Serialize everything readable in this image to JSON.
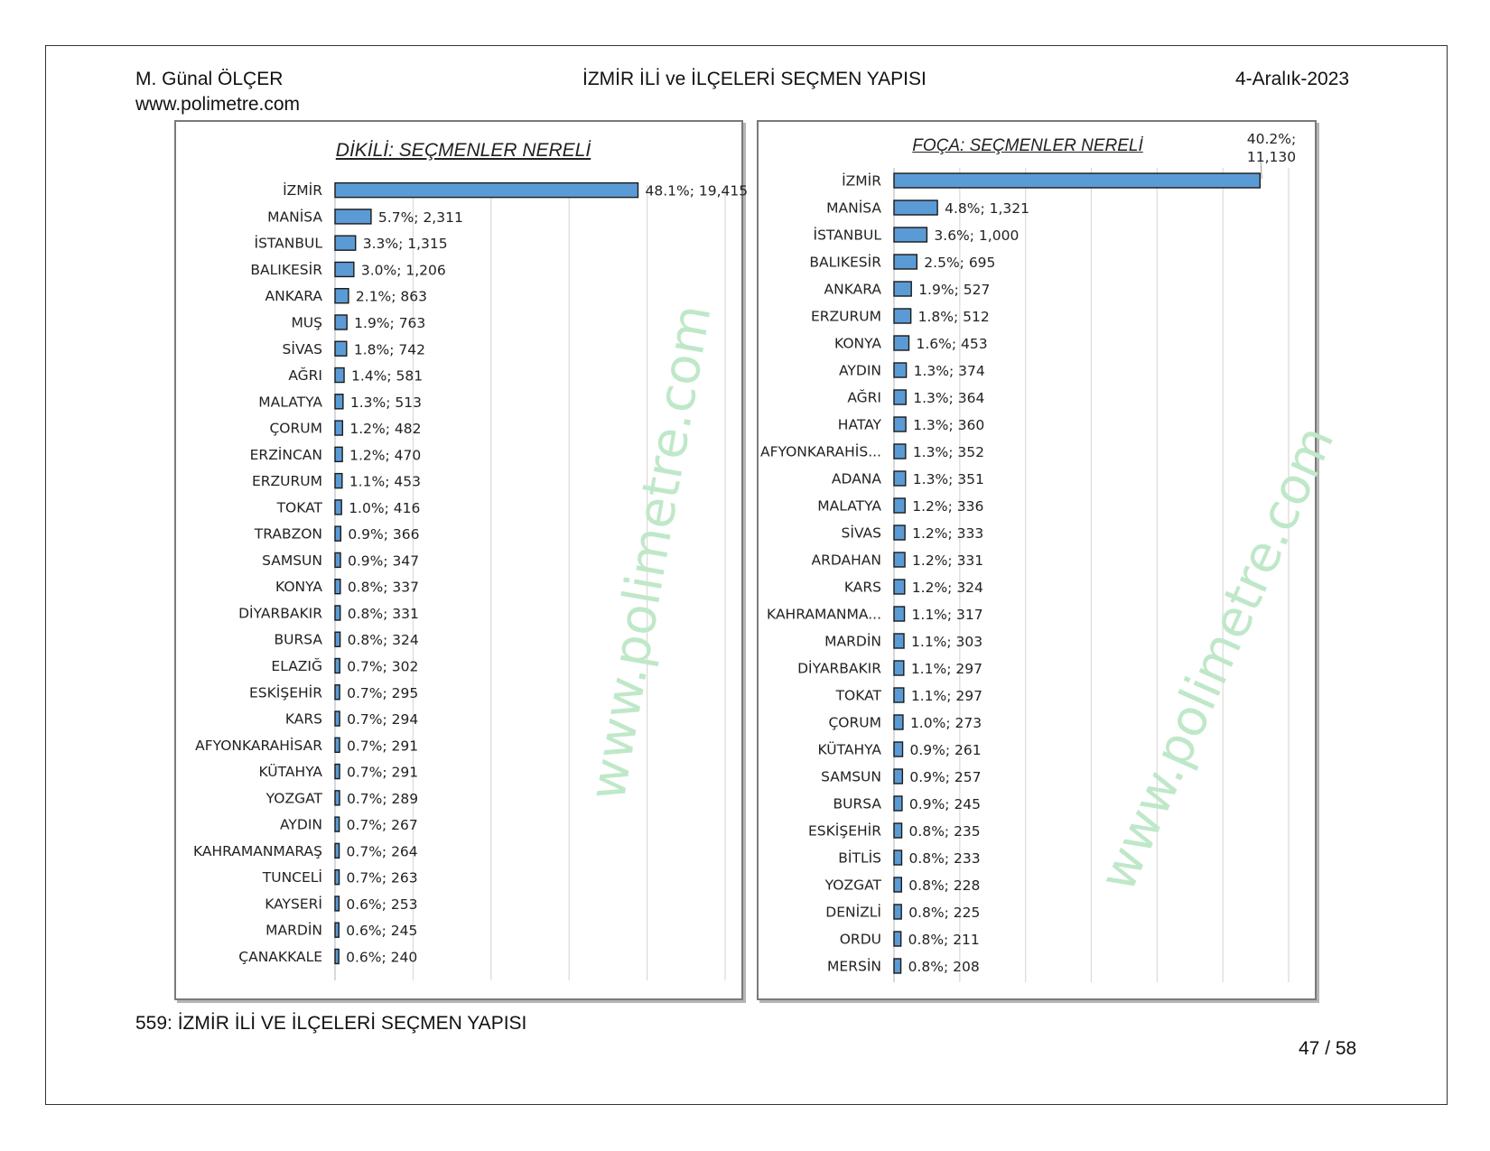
{
  "header": {
    "author": "M. Günal ÖLÇER",
    "website": "www.polimetre.com",
    "title": "İZMİR İLİ ve İLÇELERİ SEÇMEN YAPISI",
    "date": "4-Aralık-2023"
  },
  "footer": {
    "caption": "559: İZMİR İLİ VE İLÇELERİ SEÇMEN YAPISI",
    "page": "47 / 58"
  },
  "watermark": "www.polimetre.com",
  "colors": {
    "bar": "#5b9bd5",
    "bar_border": "#1a1a1a",
    "grid": "#d9d9d9",
    "watermark": "#bfe8c9"
  },
  "chart_data": [
    {
      "type": "bar",
      "orientation": "horizontal",
      "title": "DİKİLİ: SEÇMENLER NERELİ",
      "grid": true,
      "categories": [
        "İZMİR",
        "MANİSA",
        "İSTANBUL",
        "BALIKESİR",
        "ANKARA",
        "MUŞ",
        "SİVAS",
        "AĞRI",
        "MALATYA",
        "ÇORUM",
        "ERZİNCAN",
        "ERZURUM",
        "TOKAT",
        "TRABZON",
        "SAMSUN",
        "KONYA",
        "DİYARBAKIR",
        "BURSA",
        "ELAZIĞ",
        "ESKİŞEHİR",
        "KARS",
        "AFYONKARAHİSAR",
        "KÜTAHYA",
        "YOZGAT",
        "AYDIN",
        "KAHRAMANMARAŞ",
        "TUNCELİ",
        "KAYSERİ",
        "MARDİN",
        "ÇANAKKALE"
      ],
      "values": [
        19415,
        2311,
        1315,
        1206,
        863,
        763,
        742,
        581,
        513,
        482,
        470,
        453,
        416,
        366,
        347,
        337,
        331,
        324,
        302,
        295,
        294,
        291,
        291,
        289,
        267,
        264,
        263,
        253,
        245,
        240
      ],
      "data_labels": [
        "48.1%; 19,415",
        "5.7%; 2,311",
        "3.3%; 1,315",
        "3.0%; 1,206",
        "2.1%; 863",
        "1.9%; 763",
        "1.8%; 742",
        "1.4%; 581",
        "1.3%; 513",
        "1.2%; 482",
        "1.2%; 470",
        "1.1%; 453",
        "1.0%; 416",
        "0.9%; 366",
        "0.9%; 347",
        "0.8%; 337",
        "0.8%; 331",
        "0.8%; 324",
        "0.7%; 302",
        "0.7%; 295",
        "0.7%; 294",
        "0.7%; 291",
        "0.7%; 291",
        "0.7%; 289",
        "0.7%; 267",
        "0.7%; 264",
        "0.7%; 263",
        "0.6%; 253",
        "0.6%; 245",
        "0.6%; 240"
      ],
      "xlim": [
        0,
        25000
      ]
    },
    {
      "type": "bar",
      "orientation": "horizontal",
      "title": "FOÇA: SEÇMENLER NERELİ",
      "grid": true,
      "categories": [
        "İZMİR",
        "MANİSA",
        "İSTANBUL",
        "BALIKESİR",
        "ANKARA",
        "ERZURUM",
        "KONYA",
        "AYDIN",
        "AĞRI",
        "HATAY",
        "AFYONKARAHİS...",
        "ADANA",
        "MALATYA",
        "SİVAS",
        "ARDAHAN",
        "KARS",
        "KAHRAMANMA...",
        "MARDİN",
        "DİYARBAKIR",
        "TOKAT",
        "ÇORUM",
        "KÜTAHYA",
        "SAMSUN",
        "BURSA",
        "ESKİŞEHİR",
        "BİTLİS",
        "YOZGAT",
        "DENİZLİ",
        "ORDU",
        "MERSİN"
      ],
      "values": [
        11130,
        1321,
        1000,
        695,
        527,
        512,
        453,
        374,
        364,
        360,
        352,
        351,
        336,
        333,
        331,
        324,
        317,
        303,
        297,
        297,
        273,
        261,
        257,
        245,
        235,
        233,
        228,
        225,
        211,
        208
      ],
      "data_labels": [
        "40.2%; 11,130",
        "4.8%; 1,321",
        "3.6%; 1,000",
        "2.5%; 695",
        "1.9%; 527",
        "1.8%; 512",
        "1.6%; 453",
        "1.3%; 374",
        "1.3%; 364",
        "1.3%; 360",
        "1.3%; 352",
        "1.3%; 351",
        "1.2%; 336",
        "1.2%; 333",
        "1.2%; 331",
        "1.2%; 324",
        "1.1%; 317",
        "1.1%; 303",
        "1.1%; 297",
        "1.1%; 297",
        "1.0%; 273",
        "0.9%; 261",
        "0.9%; 257",
        "0.9%; 245",
        "0.8%; 235",
        "0.8%; 233",
        "0.8%; 228",
        "0.8%; 225",
        "0.8%; 211",
        "0.8%; 208"
      ],
      "first_label_lines": [
        "40.2%;",
        "11,130"
      ],
      "xlim": [
        0,
        12000
      ]
    }
  ]
}
